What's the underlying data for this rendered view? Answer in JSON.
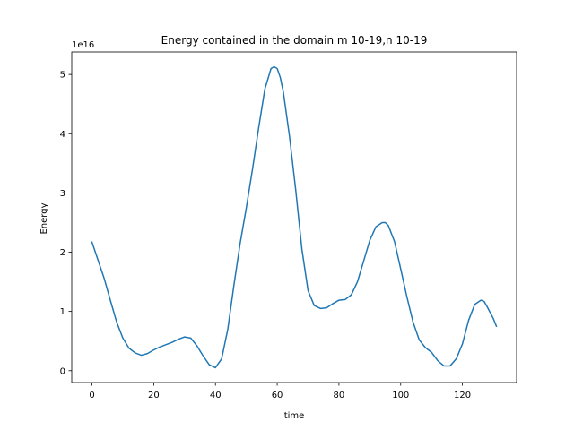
{
  "chart_data": {
    "type": "line",
    "title": "Energy contained in the domain m 10-19,n 10-19",
    "xlabel": "time",
    "ylabel": "Energy",
    "y_offset_label": "1e16",
    "y_scale": 1e+16,
    "xlim": [
      -6.55,
      137.55
    ],
    "ylim": [
      -0.2,
      5.38
    ],
    "xticks": [
      0,
      20,
      40,
      60,
      80,
      100,
      120
    ],
    "yticks": [
      0,
      1,
      2,
      3,
      4,
      5
    ],
    "grid": false,
    "series": [
      {
        "color": "#1f77b4",
        "x": [
          0,
          2,
          4,
          6,
          8,
          10,
          12,
          14,
          16,
          18,
          20,
          22,
          24,
          26,
          28,
          30,
          32,
          34,
          36,
          38,
          40,
          42,
          44,
          46,
          48,
          50,
          52,
          54,
          56,
          58,
          59,
          60,
          61,
          62,
          64,
          66,
          68,
          70,
          72,
          74,
          76,
          78,
          80,
          82,
          84,
          86,
          88,
          90,
          92,
          94,
          95,
          96,
          98,
          100,
          102,
          104,
          106,
          108,
          110,
          112,
          114,
          116,
          118,
          120,
          122,
          124,
          126,
          127,
          128,
          130,
          131
        ],
        "y": [
          2.17,
          1.86,
          1.55,
          1.18,
          0.82,
          0.55,
          0.38,
          0.3,
          0.26,
          0.29,
          0.35,
          0.4,
          0.44,
          0.48,
          0.53,
          0.57,
          0.55,
          0.42,
          0.25,
          0.1,
          0.05,
          0.2,
          0.7,
          1.45,
          2.15,
          2.75,
          3.4,
          4.1,
          4.75,
          5.1,
          5.13,
          5.1,
          4.95,
          4.7,
          3.95,
          3.05,
          2.05,
          1.35,
          1.1,
          1.05,
          1.06,
          1.13,
          1.19,
          1.2,
          1.28,
          1.5,
          1.85,
          2.2,
          2.43,
          2.5,
          2.5,
          2.45,
          2.18,
          1.72,
          1.25,
          0.82,
          0.52,
          0.39,
          0.31,
          0.17,
          0.08,
          0.08,
          0.2,
          0.45,
          0.85,
          1.12,
          1.19,
          1.17,
          1.08,
          0.88,
          0.75
        ]
      }
    ]
  }
}
